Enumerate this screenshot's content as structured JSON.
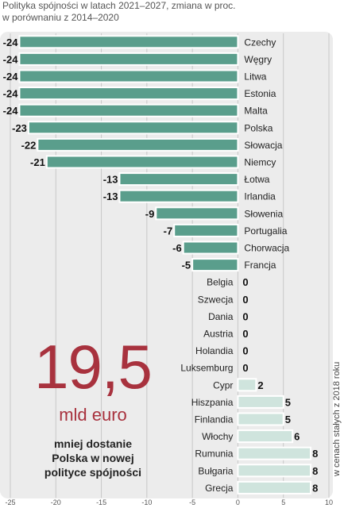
{
  "header": {
    "line1": "Polityka spójności w latach 2021–2027, zmiana w proc.",
    "line2": "w porównaniu z 2014–2020"
  },
  "highlight": {
    "number": "19,5",
    "unit": "mld euro",
    "caption_line1": "mniej dostanie",
    "caption_line2": "Polska w nowej",
    "caption_line3": "polityce spójności"
  },
  "side_note": "w cenach stałych z 2018 roku",
  "colors": {
    "negative_bar": "#5a9e8c",
    "positive_bar": "#cfe4dd",
    "accent": "#a8323e"
  },
  "chart_data": {
    "type": "bar",
    "orientation": "horizontal",
    "title": "Polityka spójności w latach 2021–2027, zmiana w proc.",
    "subtitle": "w porównaniu z 2014–2020",
    "categories": [
      "Czechy",
      "Węgry",
      "Litwa",
      "Estonia",
      "Malta",
      "Polska",
      "Słowacja",
      "Niemcy",
      "Łotwa",
      "Irlandia",
      "Słowenia",
      "Portugalia",
      "Chorwacja",
      "Francja",
      "Belgia",
      "Szwecja",
      "Dania",
      "Austria",
      "Holandia",
      "Luksemburg",
      "Cypr",
      "Hiszpania",
      "Finlandia",
      "Włochy",
      "Rumunia",
      "Bułgaria",
      "Grecja"
    ],
    "values": [
      -24,
      -24,
      -24,
      -24,
      -24,
      -23,
      -22,
      -21,
      -13,
      -13,
      -9,
      -7,
      -6,
      -5,
      0,
      0,
      0,
      0,
      0,
      0,
      2,
      5,
      5,
      6,
      8,
      8,
      8
    ],
    "xlim": [
      -25,
      10
    ],
    "xticks": [
      "-25",
      "-20",
      "-15",
      "-10",
      "-5",
      "0",
      "5",
      "10"
    ],
    "grid": true
  }
}
